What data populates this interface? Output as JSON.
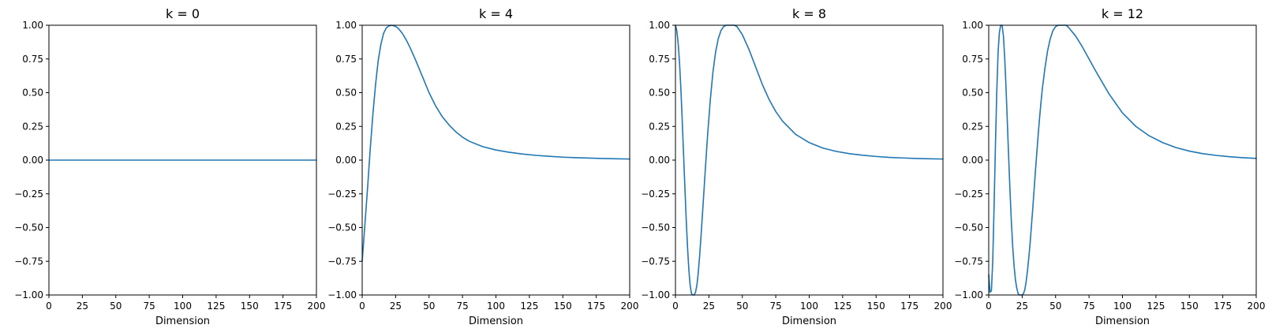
{
  "chart_data": [
    {
      "type": "line",
      "title": "k = 0",
      "xlabel": "Dimension",
      "ylabel": "",
      "xlim": [
        0,
        200
      ],
      "ylim": [
        -1.0,
        1.0
      ],
      "xticks": [
        "0",
        "25",
        "50",
        "75",
        "100",
        "125",
        "150",
        "175",
        "200"
      ],
      "yticks": [
        "−1.00",
        "−0.75",
        "−0.50",
        "−0.25",
        "0.00",
        "0.25",
        "0.50",
        "0.75",
        "1.00"
      ],
      "grid": false,
      "series": [
        {
          "color": "#1f77b4",
          "x": [
            0,
            25,
            50,
            75,
            100,
            125,
            150,
            175,
            200
          ],
          "y": [
            0,
            0,
            0,
            0,
            0,
            0,
            0,
            0,
            0
          ]
        }
      ]
    },
    {
      "type": "line",
      "title": "k = 4",
      "xlabel": "Dimension",
      "ylabel": "",
      "xlim": [
        0,
        200
      ],
      "ylim": [
        -1.0,
        1.0
      ],
      "xticks": [
        "0",
        "25",
        "50",
        "75",
        "100",
        "125",
        "150",
        "175",
        "200"
      ],
      "yticks": [
        "−1.00",
        "−0.75",
        "−0.50",
        "−0.25",
        "0.00",
        "0.25",
        "0.50",
        "0.75",
        "1.00"
      ],
      "grid": false,
      "series": [
        {
          "color": "#1f77b4",
          "x": [
            0,
            2,
            4,
            6,
            8,
            10,
            12,
            14,
            16,
            18,
            20,
            22,
            24,
            26,
            28,
            30,
            33,
            36,
            40,
            45,
            50,
            55,
            60,
            65,
            70,
            75,
            80,
            90,
            100,
            110,
            120,
            130,
            140,
            150,
            160,
            170,
            180,
            190,
            200
          ],
          "y": [
            -0.75,
            -0.48,
            -0.21,
            0.08,
            0.34,
            0.56,
            0.74,
            0.86,
            0.94,
            0.98,
            0.995,
            1.0,
            0.995,
            0.985,
            0.965,
            0.94,
            0.89,
            0.83,
            0.74,
            0.62,
            0.5,
            0.4,
            0.32,
            0.26,
            0.21,
            0.17,
            0.14,
            0.1,
            0.075,
            0.058,
            0.045,
            0.035,
            0.028,
            0.022,
            0.018,
            0.015,
            0.012,
            0.01,
            0.008
          ]
        }
      ]
    },
    {
      "type": "line",
      "title": "k = 8",
      "xlabel": "Dimension",
      "ylabel": "",
      "xlim": [
        0,
        200
      ],
      "ylim": [
        -1.0,
        1.0
      ],
      "xticks": [
        "0",
        "25",
        "50",
        "75",
        "100",
        "125",
        "150",
        "175",
        "200"
      ],
      "yticks": [
        "−1.00",
        "−0.75",
        "−0.50",
        "−0.25",
        "0.00",
        "0.25",
        "0.50",
        "0.75",
        "1.00"
      ],
      "grid": false,
      "series": [
        {
          "color": "#1f77b4",
          "x": [
            0,
            1,
            2,
            3,
            4,
            5,
            6,
            7,
            8,
            9,
            10,
            11,
            12,
            13,
            14,
            15,
            16,
            17,
            18,
            19,
            20,
            22,
            24,
            26,
            28,
            30,
            32,
            34,
            36,
            38,
            40,
            42,
            44,
            46,
            48,
            50,
            55,
            60,
            65,
            70,
            75,
            80,
            90,
            100,
            110,
            120,
            130,
            140,
            150,
            160,
            170,
            180,
            190,
            200
          ],
          "y": [
            1.0,
            0.96,
            0.87,
            0.73,
            0.54,
            0.31,
            0.06,
            -0.19,
            -0.43,
            -0.64,
            -0.81,
            -0.93,
            -0.99,
            -1.0,
            -1.0,
            -0.98,
            -0.93,
            -0.84,
            -0.72,
            -0.58,
            -0.43,
            -0.12,
            0.18,
            0.44,
            0.65,
            0.8,
            0.9,
            0.96,
            0.99,
            1.0,
            1.0,
            1.0,
            1.0,
            0.99,
            0.96,
            0.93,
            0.82,
            0.69,
            0.56,
            0.45,
            0.36,
            0.29,
            0.19,
            0.13,
            0.09,
            0.065,
            0.048,
            0.036,
            0.027,
            0.02,
            0.016,
            0.012,
            0.01,
            0.008
          ]
        }
      ]
    },
    {
      "type": "line",
      "title": "k = 12",
      "xlabel": "Dimension",
      "ylabel": "",
      "xlim": [
        0,
        200
      ],
      "ylim": [
        -1.0,
        1.0
      ],
      "xticks": [
        "0",
        "25",
        "50",
        "75",
        "100",
        "125",
        "150",
        "175",
        "200"
      ],
      "yticks": [
        "−1.00",
        "−0.75",
        "−0.50",
        "−0.25",
        "0.00",
        "0.25",
        "0.50",
        "0.75",
        "1.00"
      ],
      "grid": false,
      "series": [
        {
          "color": "#1f77b4",
          "x": [
            0,
            1,
            2,
            3,
            4,
            5,
            6,
            7,
            8,
            9,
            10,
            11,
            12,
            13,
            14,
            15,
            16,
            17,
            18,
            19,
            20,
            21,
            22,
            23,
            24,
            25,
            26,
            27,
            28,
            29,
            30,
            31,
            32,
            33,
            34,
            35,
            36,
            37,
            38,
            39,
            40,
            42,
            44,
            46,
            48,
            50,
            52,
            54,
            56,
            58,
            60,
            65,
            70,
            75,
            80,
            90,
            100,
            110,
            120,
            130,
            140,
            150,
            160,
            170,
            180,
            190,
            200
          ],
          "y": [
            -0.85,
            -0.98,
            -0.97,
            -0.75,
            -0.35,
            0.1,
            0.5,
            0.8,
            0.95,
            1.0,
            1.0,
            0.92,
            0.75,
            0.52,
            0.26,
            0.0,
            -0.25,
            -0.47,
            -0.65,
            -0.79,
            -0.89,
            -0.95,
            -0.99,
            -1.0,
            -1.0,
            -1.0,
            -0.99,
            -0.96,
            -0.9,
            -0.82,
            -0.72,
            -0.61,
            -0.48,
            -0.35,
            -0.21,
            -0.07,
            0.06,
            0.19,
            0.31,
            0.42,
            0.52,
            0.68,
            0.81,
            0.9,
            0.96,
            0.99,
            1.0,
            1.0,
            1.0,
            1.0,
            0.98,
            0.92,
            0.84,
            0.75,
            0.66,
            0.49,
            0.35,
            0.25,
            0.18,
            0.13,
            0.093,
            0.067,
            0.048,
            0.035,
            0.025,
            0.018,
            0.013
          ]
        }
      ]
    }
  ]
}
